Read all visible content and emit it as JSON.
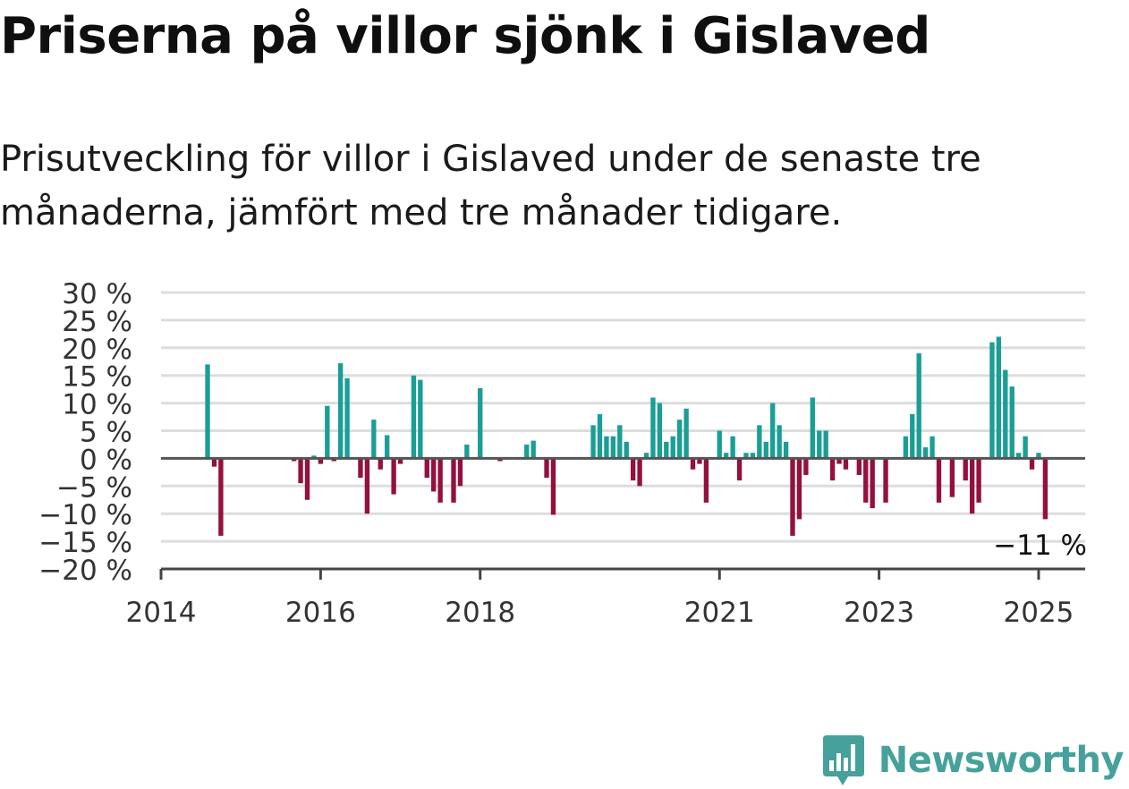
{
  "header": {
    "title": "Priserna på villor sjönk i Gislaved",
    "subtitle": "Prisutveckling för villor i Gislaved under de senaste tre månaderna, jämfört med tre månader tidigare."
  },
  "colors": {
    "positive": "#1a9e96",
    "negative": "#93103f",
    "grid": "#dddddd",
    "axis": "#444444",
    "brand": "#45a19a"
  },
  "chart_data": {
    "type": "bar",
    "ylim": [
      -20,
      30
    ],
    "y_ticks": [
      30,
      25,
      20,
      15,
      10,
      5,
      0,
      -5,
      -10,
      -15,
      -20
    ],
    "y_tick_labels": [
      "30 %",
      "25 %",
      "20 %",
      "15 %",
      "10 %",
      "5 %",
      "0 %",
      "−5 %",
      "−10 %",
      "−15 %",
      "−20 %"
    ],
    "x_range": [
      "2014-01",
      "2025-08"
    ],
    "x_ticks": [
      {
        "label": "2014",
        "date": "2014-01"
      },
      {
        "label": "2016",
        "date": "2016-01"
      },
      {
        "label": "2018",
        "date": "2018-01"
      },
      {
        "label": "2021",
        "date": "2021-01"
      },
      {
        "label": "2023",
        "date": "2023-01"
      },
      {
        "label": "2025",
        "date": "2025-01"
      }
    ],
    "grid": true,
    "annotation": "−11 %",
    "series": [
      {
        "points": [
          {
            "x": "2014-08",
            "y": 17
          },
          {
            "x": "2014-09",
            "y": -1.5
          },
          {
            "x": "2014-10",
            "y": -14
          },
          {
            "x": "2015-09",
            "y": -0.5
          },
          {
            "x": "2015-10",
            "y": -4.5
          },
          {
            "x": "2015-11",
            "y": -7.5
          },
          {
            "x": "2015-12",
            "y": 0.5
          },
          {
            "x": "2016-01",
            "y": -1
          },
          {
            "x": "2016-02",
            "y": 9.5
          },
          {
            "x": "2016-03",
            "y": -0.5
          },
          {
            "x": "2016-04",
            "y": 17.2
          },
          {
            "x": "2016-05",
            "y": 14.5
          },
          {
            "x": "2016-07",
            "y": -3.5
          },
          {
            "x": "2016-08",
            "y": -10
          },
          {
            "x": "2016-09",
            "y": 7
          },
          {
            "x": "2016-10",
            "y": -2
          },
          {
            "x": "2016-11",
            "y": 4.2
          },
          {
            "x": "2016-12",
            "y": -6.5
          },
          {
            "x": "2017-01",
            "y": -1
          },
          {
            "x": "2017-03",
            "y": 15
          },
          {
            "x": "2017-04",
            "y": 14.2
          },
          {
            "x": "2017-05",
            "y": -3.5
          },
          {
            "x": "2017-06",
            "y": -6
          },
          {
            "x": "2017-07",
            "y": -8
          },
          {
            "x": "2017-09",
            "y": -8
          },
          {
            "x": "2017-10",
            "y": -5
          },
          {
            "x": "2017-11",
            "y": 2.5
          },
          {
            "x": "2018-01",
            "y": 12.7
          },
          {
            "x": "2018-04",
            "y": -0.5
          },
          {
            "x": "2018-08",
            "y": 2.5
          },
          {
            "x": "2018-09",
            "y": 3.2
          },
          {
            "x": "2018-11",
            "y": -3.5
          },
          {
            "x": "2018-12",
            "y": -10.2
          },
          {
            "x": "2019-06",
            "y": 6
          },
          {
            "x": "2019-07",
            "y": 8
          },
          {
            "x": "2019-08",
            "y": 4
          },
          {
            "x": "2019-09",
            "y": 4
          },
          {
            "x": "2019-10",
            "y": 6
          },
          {
            "x": "2019-11",
            "y": 3
          },
          {
            "x": "2019-12",
            "y": -4
          },
          {
            "x": "2020-01",
            "y": -5
          },
          {
            "x": "2020-02",
            "y": 1
          },
          {
            "x": "2020-03",
            "y": 11
          },
          {
            "x": "2020-04",
            "y": 10
          },
          {
            "x": "2020-05",
            "y": 3
          },
          {
            "x": "2020-06",
            "y": 4
          },
          {
            "x": "2020-07",
            "y": 7
          },
          {
            "x": "2020-08",
            "y": 9
          },
          {
            "x": "2020-09",
            "y": -2
          },
          {
            "x": "2020-10",
            "y": -1
          },
          {
            "x": "2020-11",
            "y": -8
          },
          {
            "x": "2021-01",
            "y": 5
          },
          {
            "x": "2021-02",
            "y": 1
          },
          {
            "x": "2021-03",
            "y": 4
          },
          {
            "x": "2021-04",
            "y": -4
          },
          {
            "x": "2021-05",
            "y": 1
          },
          {
            "x": "2021-06",
            "y": 1
          },
          {
            "x": "2021-07",
            "y": 6
          },
          {
            "x": "2021-08",
            "y": 3
          },
          {
            "x": "2021-09",
            "y": 10
          },
          {
            "x": "2021-10",
            "y": 6
          },
          {
            "x": "2021-11",
            "y": 3
          },
          {
            "x": "2021-12",
            "y": -14
          },
          {
            "x": "2022-01",
            "y": -11
          },
          {
            "x": "2022-02",
            "y": -3
          },
          {
            "x": "2022-03",
            "y": 11
          },
          {
            "x": "2022-04",
            "y": 5
          },
          {
            "x": "2022-05",
            "y": 5
          },
          {
            "x": "2022-06",
            "y": -4
          },
          {
            "x": "2022-07",
            "y": -1
          },
          {
            "x": "2022-08",
            "y": -2
          },
          {
            "x": "2022-10",
            "y": -3
          },
          {
            "x": "2022-11",
            "y": -8
          },
          {
            "x": "2022-12",
            "y": -9
          },
          {
            "x": "2023-02",
            "y": -8
          },
          {
            "x": "2023-05",
            "y": 4
          },
          {
            "x": "2023-06",
            "y": 8
          },
          {
            "x": "2023-07",
            "y": 19
          },
          {
            "x": "2023-08",
            "y": 2
          },
          {
            "x": "2023-09",
            "y": 4
          },
          {
            "x": "2023-10",
            "y": -8
          },
          {
            "x": "2023-12",
            "y": -7
          },
          {
            "x": "2024-02",
            "y": -4
          },
          {
            "x": "2024-03",
            "y": -10
          },
          {
            "x": "2024-04",
            "y": -8
          },
          {
            "x": "2024-06",
            "y": 21
          },
          {
            "x": "2024-07",
            "y": 22
          },
          {
            "x": "2024-08",
            "y": 16
          },
          {
            "x": "2024-09",
            "y": 13
          },
          {
            "x": "2024-10",
            "y": 1
          },
          {
            "x": "2024-11",
            "y": 4
          },
          {
            "x": "2024-12",
            "y": -2
          },
          {
            "x": "2025-01",
            "y": 1
          },
          {
            "x": "2025-02",
            "y": -11
          }
        ]
      }
    ]
  },
  "brand": {
    "name": "Newsworthy",
    "logo_icon": "bar-chart-speech-bubble-icon"
  }
}
